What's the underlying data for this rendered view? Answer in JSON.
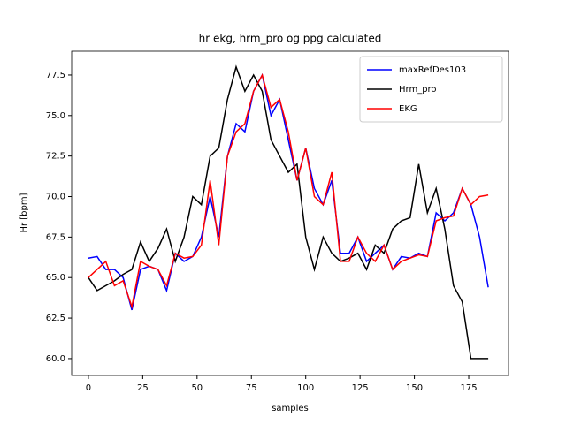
{
  "chart_data": {
    "type": "line",
    "title": "hr ekg, hrm_pro og ppg calculated",
    "x_label": "samples",
    "y_label": "Hr [bpm]",
    "x": [
      0,
      4,
      8,
      12,
      16,
      20,
      24,
      28,
      32,
      36,
      40,
      44,
      48,
      52,
      56,
      60,
      64,
      68,
      72,
      76,
      80,
      84,
      88,
      92,
      96,
      100,
      104,
      108,
      112,
      116,
      120,
      124,
      128,
      132,
      136,
      140,
      144,
      148,
      152,
      156,
      160,
      164,
      168,
      172,
      176,
      180,
      184
    ],
    "series": [
      {
        "name": "maxRefDes103",
        "color": "#0000ff",
        "values": [
          66.2,
          66.3,
          65.5,
          65.5,
          65.0,
          63.0,
          65.5,
          65.7,
          65.5,
          64.2,
          66.5,
          66.0,
          66.3,
          67.5,
          70.0,
          67.5,
          72.5,
          74.5,
          74.0,
          76.5,
          77.5,
          75.0,
          76.0,
          73.5,
          71.0,
          73.0,
          70.5,
          69.5,
          71.0,
          66.5,
          66.5,
          67.5,
          66.0,
          66.5,
          67.0,
          65.5,
          66.3,
          66.2,
          66.5,
          66.3,
          69.0,
          68.5,
          69.0,
          70.5,
          69.5,
          67.5,
          64.4
        ]
      },
      {
        "name": "Hrm_pro",
        "color": "#000000",
        "values": [
          65.0,
          64.2,
          64.5,
          64.8,
          65.2,
          65.5,
          67.2,
          66.0,
          66.8,
          68.0,
          66.0,
          67.5,
          70.0,
          69.5,
          72.5,
          73.0,
          76.0,
          78.0,
          76.5,
          77.5,
          76.5,
          73.5,
          72.5,
          71.5,
          72.0,
          67.5,
          65.5,
          67.5,
          66.5,
          66.0,
          66.2,
          66.5,
          65.5,
          67.0,
          66.5,
          68.0,
          68.5,
          68.7,
          72.0,
          69.0,
          70.5,
          68.0,
          64.5,
          63.5,
          60.0,
          60.0,
          60.0
        ]
      },
      {
        "name": "EKG",
        "color": "#ff0000",
        "values": [
          65.0,
          65.5,
          66.0,
          64.5,
          64.8,
          63.2,
          66.0,
          65.7,
          65.5,
          64.5,
          66.5,
          66.2,
          66.3,
          67.0,
          71.0,
          67.0,
          72.5,
          74.0,
          74.5,
          76.5,
          77.5,
          75.5,
          76.0,
          74.0,
          71.0,
          73.0,
          70.0,
          69.5,
          71.5,
          66.0,
          66.0,
          67.5,
          66.5,
          66.0,
          67.0,
          65.5,
          66.0,
          66.2,
          66.4,
          66.3,
          68.5,
          68.7,
          68.8,
          70.5,
          69.5,
          70.0,
          70.1
        ]
      }
    ],
    "xlim": [
      -7.7,
      193.3
    ],
    "ylim": [
      58.96,
      78.97
    ],
    "xticks": [
      0,
      25,
      50,
      75,
      100,
      125,
      150,
      175
    ],
    "yticks": [
      {
        "value": 60,
        "label": "60.0"
      },
      62.5,
      {
        "value": 65,
        "label": "65.0"
      },
      67.5,
      {
        "value": 70,
        "label": "70.0"
      },
      72.5,
      {
        "value": 75,
        "label": "75.0"
      },
      77.5
    ],
    "legend": "upper right"
  }
}
